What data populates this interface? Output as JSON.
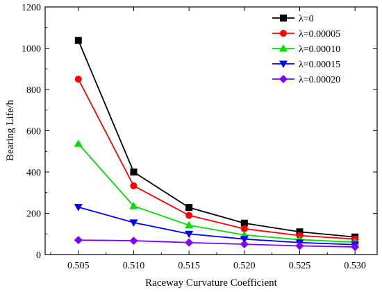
{
  "chart_data": {
    "type": "line",
    "xlabel": "Raceway Curvature Coefficient",
    "ylabel": "Bearing Life/h",
    "xlim": [
      0.502,
      0.532
    ],
    "ylim": [
      0,
      1200
    ],
    "x_ticks": [
      "0.505",
      "0.510",
      "0.515",
      "0.520",
      "0.525",
      "0.530"
    ],
    "y_ticks": [
      "0",
      "200",
      "400",
      "600",
      "800",
      "1000",
      "1200"
    ],
    "legend_position": "top-right",
    "grid": false,
    "x": [
      0.505,
      0.51,
      0.515,
      0.52,
      0.525,
      0.53
    ],
    "series": [
      {
        "name": "λ=0",
        "color": "#000000",
        "marker": "square",
        "values": [
          1038,
          400,
          228,
          152,
          110,
          85
        ]
      },
      {
        "name": "λ=0.00005",
        "color": "#ff0000",
        "marker": "circle",
        "values": [
          850,
          333,
          190,
          125,
          92,
          75
        ]
      },
      {
        "name": "λ=0.00010",
        "color": "#00dd00",
        "marker": "triangle-up",
        "values": [
          537,
          235,
          142,
          95,
          72,
          60
        ]
      },
      {
        "name": "λ=0.00015",
        "color": "#0000ff",
        "marker": "triangle-down",
        "values": [
          230,
          155,
          100,
          75,
          58,
          48
        ]
      },
      {
        "name": "λ=0.00020",
        "color": "#8000ff",
        "marker": "diamond",
        "values": [
          70,
          67,
          58,
          50,
          42,
          37
        ]
      }
    ]
  }
}
